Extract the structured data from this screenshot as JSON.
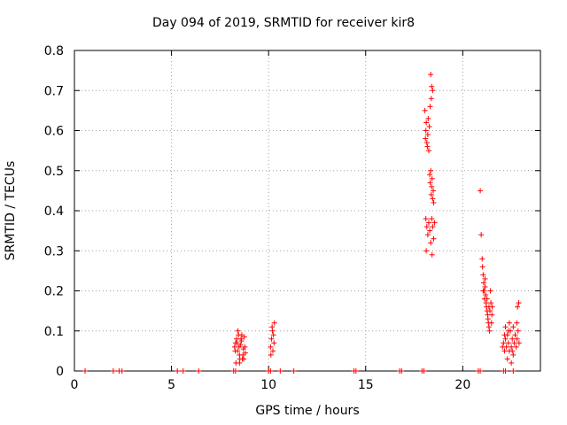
{
  "chart_data": {
    "type": "scatter",
    "title": "Day 094 of 2019, SRMTID for receiver kir8",
    "xlabel": "GPS time / hours",
    "ylabel": "SRMTID / TECUs",
    "xlim": [
      0,
      24
    ],
    "ylim": [
      0,
      0.8
    ],
    "xticks": [
      0,
      5,
      10,
      15,
      20
    ],
    "yticks": [
      0,
      0.1,
      0.2,
      0.3,
      0.4,
      0.5,
      0.6,
      0.7,
      0.8
    ],
    "ytick_labels": [
      "0",
      "0.1",
      "0.2",
      "0.3",
      "0.4",
      "0.5",
      "0.6",
      "0.7",
      "0.8"
    ],
    "grid": true,
    "marker": "+",
    "color": "#ff0000",
    "series": [
      {
        "name": "kir8",
        "points": [
          [
            0.55,
            0
          ],
          [
            2.0,
            0
          ],
          [
            2.3,
            0
          ],
          [
            2.45,
            0
          ],
          [
            5.3,
            0
          ],
          [
            5.6,
            0
          ],
          [
            6.4,
            0
          ],
          [
            8.2,
            0
          ],
          [
            8.3,
            0
          ],
          [
            10.0,
            0
          ],
          [
            10.1,
            0
          ],
          [
            10.6,
            0
          ],
          [
            11.3,
            0
          ],
          [
            14.4,
            0
          ],
          [
            14.5,
            0
          ],
          [
            16.75,
            0
          ],
          [
            16.85,
            0
          ],
          [
            17.9,
            0
          ],
          [
            18.0,
            0
          ],
          [
            20.8,
            0
          ],
          [
            20.9,
            0
          ],
          [
            22.1,
            0
          ],
          [
            22.2,
            0
          ],
          [
            22.6,
            0
          ],
          [
            8.25,
            0.06
          ],
          [
            8.3,
            0.07
          ],
          [
            8.35,
            0.08
          ],
          [
            8.4,
            0.05
          ],
          [
            8.45,
            0.09
          ],
          [
            8.5,
            0.04
          ],
          [
            8.55,
            0.065
          ],
          [
            8.6,
            0.075
          ],
          [
            8.65,
            0.03
          ],
          [
            8.7,
            0.055
          ],
          [
            8.75,
            0.085
          ],
          [
            8.8,
            0.045
          ],
          [
            8.32,
            0.02
          ],
          [
            8.42,
            0.1
          ],
          [
            8.52,
            0.03
          ],
          [
            8.62,
            0.09
          ],
          [
            8.28,
            0.05
          ],
          [
            8.48,
            0.06
          ],
          [
            8.58,
            0.08
          ],
          [
            8.68,
            0.04
          ],
          [
            8.38,
            0.07
          ],
          [
            8.78,
            0.06
          ],
          [
            8.72,
            0.03
          ],
          [
            8.5,
            0.02
          ],
          [
            10.1,
            0.06
          ],
          [
            10.15,
            0.08
          ],
          [
            10.2,
            0.1
          ],
          [
            10.25,
            0.09
          ],
          [
            10.3,
            0.12
          ],
          [
            10.12,
            0.04
          ],
          [
            10.22,
            0.05
          ],
          [
            10.28,
            0.07
          ],
          [
            10.18,
            0.11
          ],
          [
            18.05,
            0.65
          ],
          [
            18.08,
            0.58
          ],
          [
            18.1,
            0.6
          ],
          [
            18.12,
            0.62
          ],
          [
            18.15,
            0.57
          ],
          [
            18.18,
            0.56
          ],
          [
            18.2,
            0.59
          ],
          [
            18.22,
            0.63
          ],
          [
            18.25,
            0.55
          ],
          [
            18.28,
            0.61
          ],
          [
            18.3,
            0.49
          ],
          [
            18.32,
            0.47
          ],
          [
            18.35,
            0.5
          ],
          [
            18.38,
            0.44
          ],
          [
            18.4,
            0.46
          ],
          [
            18.42,
            0.48
          ],
          [
            18.45,
            0.43
          ],
          [
            18.48,
            0.45
          ],
          [
            18.5,
            0.42
          ],
          [
            18.1,
            0.38
          ],
          [
            18.15,
            0.36
          ],
          [
            18.2,
            0.34
          ],
          [
            18.25,
            0.37
          ],
          [
            18.3,
            0.35
          ],
          [
            18.35,
            0.32
          ],
          [
            18.4,
            0.38
          ],
          [
            18.45,
            0.36
          ],
          [
            18.5,
            0.33
          ],
          [
            18.55,
            0.37
          ],
          [
            18.42,
            0.29
          ],
          [
            18.12,
            0.3
          ],
          [
            18.35,
            0.74
          ],
          [
            18.4,
            0.71
          ],
          [
            18.45,
            0.7
          ],
          [
            18.38,
            0.68
          ],
          [
            18.32,
            0.66
          ],
          [
            20.9,
            0.45
          ],
          [
            20.95,
            0.34
          ],
          [
            21.0,
            0.28
          ],
          [
            21.02,
            0.26
          ],
          [
            21.05,
            0.24
          ],
          [
            21.08,
            0.22
          ],
          [
            21.1,
            0.2
          ],
          [
            21.12,
            0.18
          ],
          [
            21.15,
            0.21
          ],
          [
            21.18,
            0.19
          ],
          [
            21.2,
            0.17
          ],
          [
            21.22,
            0.16
          ],
          [
            21.25,
            0.15
          ],
          [
            21.28,
            0.14
          ],
          [
            21.3,
            0.13
          ],
          [
            21.32,
            0.12
          ],
          [
            21.35,
            0.11
          ],
          [
            21.38,
            0.1
          ],
          [
            21.4,
            0.15
          ],
          [
            21.42,
            0.2
          ],
          [
            21.45,
            0.17
          ],
          [
            21.48,
            0.12
          ],
          [
            21.5,
            0.14
          ],
          [
            21.52,
            0.16
          ],
          [
            21.15,
            0.23
          ],
          [
            21.05,
            0.2
          ],
          [
            21.25,
            0.18
          ],
          [
            21.35,
            0.16
          ],
          [
            22.05,
            0.06
          ],
          [
            22.1,
            0.07
          ],
          [
            22.15,
            0.05
          ],
          [
            22.2,
            0.08
          ],
          [
            22.25,
            0.06
          ],
          [
            22.3,
            0.09
          ],
          [
            22.35,
            0.07
          ],
          [
            22.4,
            0.05
          ],
          [
            22.45,
            0.1
          ],
          [
            22.5,
            0.06
          ],
          [
            22.55,
            0.08
          ],
          [
            22.6,
            0.04
          ],
          [
            22.65,
            0.07
          ],
          [
            22.7,
            0.09
          ],
          [
            22.75,
            0.06
          ],
          [
            22.8,
            0.08
          ],
          [
            22.85,
            0.1
          ],
          [
            22.9,
            0.07
          ],
          [
            22.2,
            0.11
          ],
          [
            22.3,
            0.03
          ],
          [
            22.4,
            0.12
          ],
          [
            22.5,
            0.02
          ],
          [
            22.6,
            0.11
          ],
          [
            22.15,
            0.09
          ],
          [
            22.35,
            0.1
          ],
          [
            22.55,
            0.05
          ],
          [
            22.82,
            0.16
          ],
          [
            22.88,
            0.17
          ],
          [
            22.78,
            0.12
          ]
        ]
      }
    ]
  }
}
